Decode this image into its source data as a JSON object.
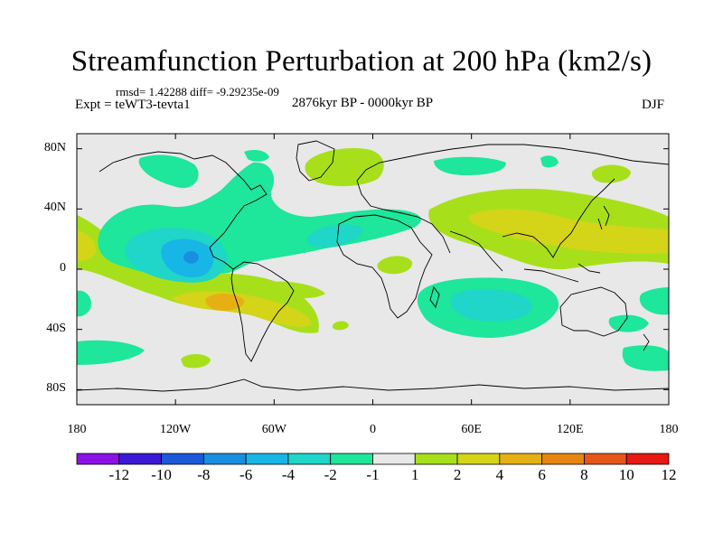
{
  "title": "Streamfunction Perturbation at 200 hPa (km2/s)",
  "stats": "rmsd= 1.42288 diff= -9.29235e-09",
  "experiment": "Expt = teWT3-tevta1",
  "period": "2876kyr BP - 0000kyr BP",
  "season": "DJF",
  "map": {
    "lat_ticks": [
      {
        "label": "80N",
        "lat": 80
      },
      {
        "label": "40N",
        "lat": 40
      },
      {
        "label": "0",
        "lat": 0
      },
      {
        "label": "40S",
        "lat": -40
      },
      {
        "label": "80S",
        "lat": -80
      }
    ],
    "lon_ticks": [
      {
        "label": "180",
        "lon": -180
      },
      {
        "label": "120W",
        "lon": -120
      },
      {
        "label": "60W",
        "lon": -60
      },
      {
        "label": "0",
        "lon": 0
      },
      {
        "label": "60E",
        "lon": 60
      },
      {
        "label": "120E",
        "lon": 120
      },
      {
        "label": "180",
        "lon": 180
      }
    ],
    "background_color": "#e8e8e8"
  },
  "colorbar": {
    "colors": [
      "#8a12e6",
      "#3c19d6",
      "#1a5ad9",
      "#1a8fe0",
      "#17b6e6",
      "#1fd6c8",
      "#1ee69a",
      "#e8e8e8",
      "#a7e01a",
      "#d4d418",
      "#e6b014",
      "#e68612",
      "#e6561a",
      "#e61a12"
    ],
    "labels": [
      "-12",
      "-10",
      "-8",
      "-6",
      "-4",
      "-2",
      "-1",
      "1",
      "2",
      "4",
      "6",
      "8",
      "10",
      "12"
    ]
  }
}
